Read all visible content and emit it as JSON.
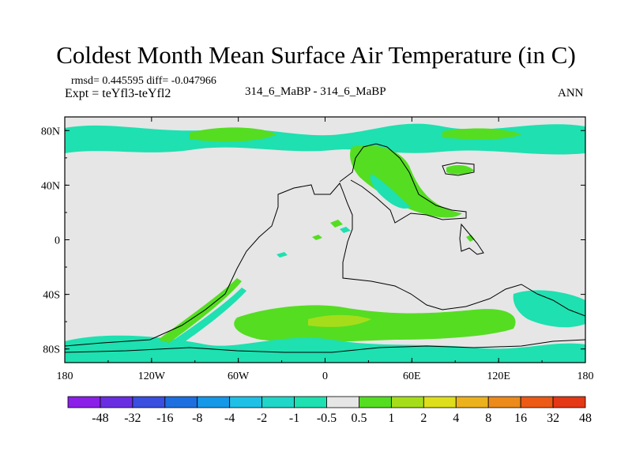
{
  "chart_data": {
    "type": "heatmap",
    "title": "Coldest Month Mean Surface Air Temperature (in C)",
    "left_info": [
      "rmsd= 0.445595 diff= -0.047966",
      "Expt = teYfl3-teYfl2"
    ],
    "center_subtitle": "314_6_MaBP - 314_6_MaBP",
    "right_subtitle": "ANN",
    "xaxis": {
      "range": [
        -180,
        180
      ],
      "ticks": [
        -180,
        -120,
        -60,
        0,
        60,
        120,
        180
      ],
      "tick_labels": [
        "180",
        "120W",
        "60W",
        "0",
        "60E",
        "120E",
        "180"
      ]
    },
    "yaxis": {
      "range": [
        -90,
        90
      ],
      "ticks": [
        -80,
        -40,
        0,
        40,
        80
      ],
      "tick_labels": [
        "80S",
        "40S",
        "0",
        "40N",
        "80N"
      ]
    },
    "colorbar": {
      "levels": [
        "-48",
        "-32",
        "-16",
        "-8",
        "-4",
        "-2",
        "-1",
        "-0.5",
        "0.5",
        "1",
        "2",
        "4",
        "8",
        "16",
        "32",
        "48"
      ],
      "colors": [
        "#8b20e8",
        "#6a2ee2",
        "#3a4ee0",
        "#1d6fe0",
        "#1698e8",
        "#1fc0e6",
        "#20d6c8",
        "#1ee0b0",
        "#e6e6e6",
        "#55dd22",
        "#a6dd1a",
        "#dede1c",
        "#ecb21e",
        "#ec8a1c",
        "#ec5a16",
        "#e43816"
      ]
    },
    "background_value_color": "#e6e6e6",
    "fields": [
      {
        "band": "cyan",
        "lon": [
          -180,
          180
        ],
        "lat": [
          66,
          80
        ]
      },
      {
        "band": "cyan",
        "lon": [
          -180,
          180
        ],
        "lat": [
          -85,
          -70
        ]
      },
      {
        "band": "green",
        "lon": [
          -40,
          60
        ],
        "lat": [
          -75,
          -55
        ]
      },
      {
        "band": "green",
        "lon": [
          -130,
          -20
        ],
        "lat": [
          -82,
          -48
        ]
      },
      {
        "band": "green",
        "lon": [
          20,
          70
        ],
        "lat": [
          20,
          60
        ]
      }
    ]
  }
}
